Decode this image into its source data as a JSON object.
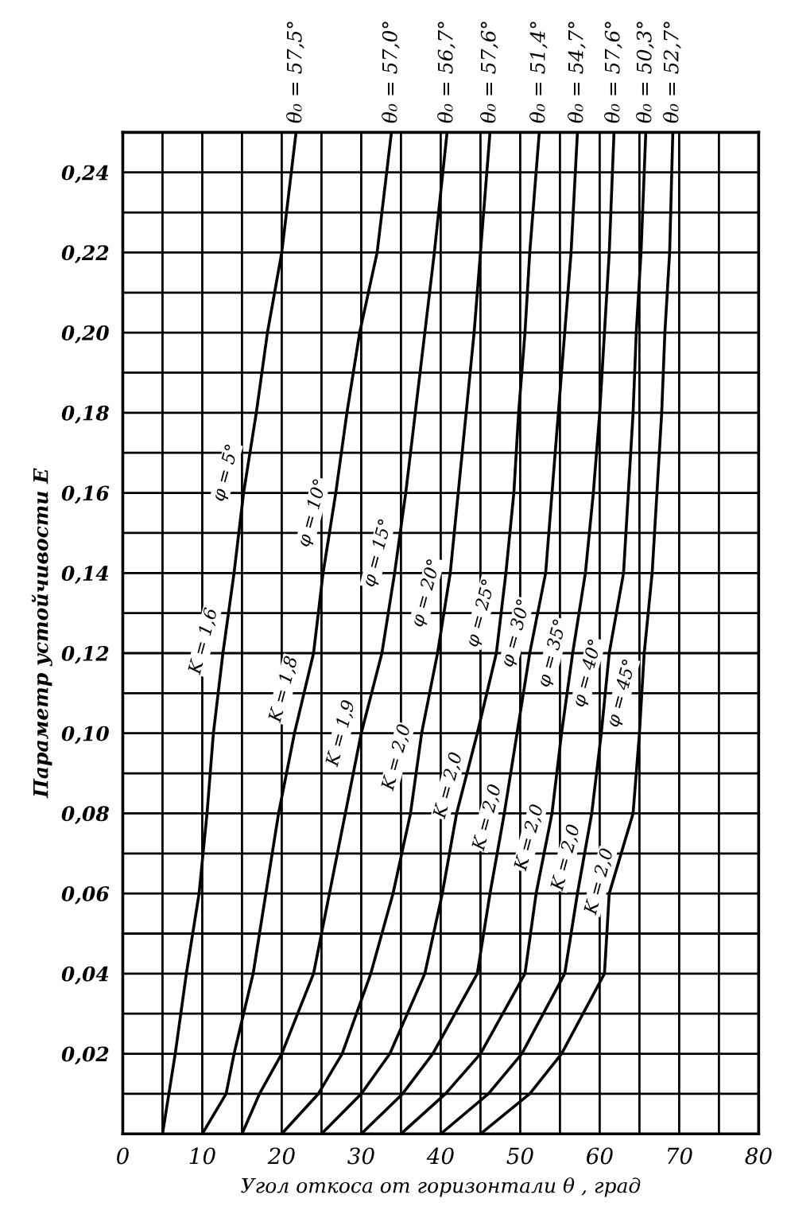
{
  "chart_data": {
    "type": "line",
    "xlabel": "Угол откоса от горизонтали θ , град",
    "ylabel": "Параметр устойчивости E",
    "xlim": [
      0,
      80
    ],
    "ylim": [
      0,
      0.25
    ],
    "xticks": [
      0,
      {
        "value": 5,
        "label": null
      },
      10,
      {
        "value": 15,
        "label": null
      },
      20,
      {
        "value": 25,
        "label": null
      },
      30,
      {
        "value": 35,
        "label": null
      },
      40,
      {
        "value": 45,
        "label": null
      },
      50,
      {
        "value": 55,
        "label": null
      },
      60,
      {
        "value": 65,
        "label": null
      },
      70,
      {
        "value": 75,
        "label": null
      },
      80
    ],
    "yticks": [
      {
        "value": 0.01,
        "label": null
      },
      {
        "value": 0.02,
        "label": "0,02"
      },
      {
        "value": 0.03,
        "label": null
      },
      {
        "value": 0.04,
        "label": "0,04"
      },
      {
        "value": 0.05,
        "label": null
      },
      {
        "value": 0.06,
        "label": "0,06"
      },
      {
        "value": 0.07,
        "label": null
      },
      {
        "value": 0.08,
        "label": "0,08"
      },
      {
        "value": 0.09,
        "label": null
      },
      {
        "value": 0.1,
        "label": "0,10"
      },
      {
        "value": 0.11,
        "label": null
      },
      {
        "value": 0.12,
        "label": "0,12"
      },
      {
        "value": 0.13,
        "label": null
      },
      {
        "value": 0.14,
        "label": "0,14"
      },
      {
        "value": 0.15,
        "label": null
      },
      {
        "value": 0.16,
        "label": "0,16"
      },
      {
        "value": 0.17,
        "label": null
      },
      {
        "value": 0.18,
        "label": "0,18"
      },
      {
        "value": 0.19,
        "label": null
      },
      {
        "value": 0.2,
        "label": "0,20"
      },
      {
        "value": 0.21,
        "label": null
      },
      {
        "value": 0.22,
        "label": "0,22"
      },
      {
        "value": 0.23,
        "label": null
      },
      {
        "value": 0.24,
        "label": "0,24"
      }
    ],
    "grid": true,
    "marker": "none",
    "line_style": "solid",
    "series": [
      {
        "color": "#000000",
        "x": [
          5,
          6.6,
          8,
          9.6,
          10.6,
          11.4,
          12.6,
          14,
          15.2,
          16.8,
          18.2,
          20,
          21.8
        ],
        "values": [
          0,
          0.02,
          0.04,
          0.06,
          0.08,
          0.1,
          0.12,
          0.14,
          0.16,
          0.18,
          0.2,
          0.22,
          0.25
        ]
      },
      {
        "color": "#000000",
        "x": [
          10,
          13,
          14,
          16.4,
          18,
          19.6,
          21.6,
          24,
          25.2,
          26.8,
          28.2,
          29.8,
          32,
          33.8
        ],
        "values": [
          0,
          0.01,
          0.02,
          0.04,
          0.06,
          0.08,
          0.1,
          0.12,
          0.14,
          0.16,
          0.18,
          0.2,
          0.22,
          0.25
        ]
      },
      {
        "color": "#000000",
        "x": [
          15,
          17.2,
          20,
          24,
          26,
          28,
          30,
          32.6,
          34.2,
          35.6,
          36.8,
          38,
          39.2,
          40.8
        ],
        "values": [
          0,
          0.01,
          0.02,
          0.04,
          0.06,
          0.08,
          0.1,
          0.12,
          0.14,
          0.16,
          0.18,
          0.2,
          0.22,
          0.25
        ]
      },
      {
        "color": "#000000",
        "x": [
          20,
          24.6,
          27.6,
          31.2,
          34,
          36.2,
          37.6,
          39.6,
          41.2,
          42.2,
          43.2,
          44.2,
          45,
          46.2
        ],
        "values": [
          0,
          0.01,
          0.02,
          0.04,
          0.06,
          0.08,
          0.1,
          0.12,
          0.14,
          0.16,
          0.18,
          0.2,
          0.22,
          0.25
        ]
      },
      {
        "color": "#000000",
        "x": [
          25,
          30,
          33.6,
          38,
          40.2,
          42,
          44.6,
          47,
          48.2,
          49.2,
          49.8,
          50.6,
          51.2,
          52.4
        ],
        "values": [
          0,
          0.01,
          0.02,
          0.04,
          0.06,
          0.08,
          0.1,
          0.12,
          0.14,
          0.16,
          0.18,
          0.2,
          0.22,
          0.25
        ]
      },
      {
        "color": "#000000",
        "x": [
          30,
          35.2,
          39,
          44.6,
          46.2,
          48,
          49.6,
          51.2,
          53.2,
          54,
          54.8,
          55.6,
          56.4,
          57.2
        ],
        "values": [
          0,
          0.01,
          0.02,
          0.04,
          0.06,
          0.08,
          0.1,
          0.12,
          0.14,
          0.16,
          0.18,
          0.2,
          0.22,
          0.25
        ]
      },
      {
        "color": "#000000",
        "x": [
          35,
          40.6,
          45,
          50.6,
          52,
          54,
          55.2,
          56.6,
          58.2,
          59.2,
          60,
          60.6,
          61.2,
          61.8
        ],
        "values": [
          0,
          0.01,
          0.02,
          0.04,
          0.06,
          0.08,
          0.1,
          0.12,
          0.14,
          0.16,
          0.18,
          0.2,
          0.22,
          0.25
        ]
      },
      {
        "color": "#000000",
        "x": [
          40,
          46,
          50.2,
          55.6,
          57.2,
          59,
          60.2,
          61.2,
          63,
          63.6,
          64.2,
          64.6,
          65.2,
          65.8
        ],
        "values": [
          0,
          0.01,
          0.02,
          0.04,
          0.06,
          0.08,
          0.1,
          0.12,
          0.14,
          0.16,
          0.18,
          0.2,
          0.22,
          0.25
        ]
      },
      {
        "color": "#000000",
        "x": [
          45,
          51.2,
          55.2,
          60.6,
          61.2,
          64.2,
          65,
          65.6,
          66.6,
          67.2,
          67.8,
          68.2,
          68.8,
          69.2
        ],
        "values": [
          0,
          0.01,
          0.02,
          0.04,
          0.06,
          0.08,
          0.1,
          0.12,
          0.14,
          0.16,
          0.18,
          0.2,
          0.22,
          0.25
        ]
      }
    ],
    "annotations": [
      {
        "text": "θ₀ = 57,5°",
        "x": 21.8,
        "y": 0.25
      },
      {
        "text": "θ₀ = 57,0°",
        "x": 33.8,
        "y": 0.25
      },
      {
        "text": "θ₀ = 56,7°",
        "x": 40.8,
        "y": 0.25
      },
      {
        "text": "θ₀ = 57,6°",
        "x": 46.2,
        "y": 0.25
      },
      {
        "text": "θ₀ = 51,4°",
        "x": 52.4,
        "y": 0.25
      },
      {
        "text": "θ₀ = 54,7°",
        "x": 57.2,
        "y": 0.25
      },
      {
        "text": "θ₀ = 57,6°",
        "x": 61.8,
        "y": 0.25
      },
      {
        "text": "θ₀ = 50,3°",
        "x": 65.8,
        "y": 0.25
      },
      {
        "text": "θ₀ = 52,7°",
        "x": 69.2,
        "y": 0.25
      },
      {
        "text": "φ = 5°",
        "x": 15.5,
        "y": 0.165
      },
      {
        "text": "φ = 10°",
        "x": 26.4,
        "y": 0.155
      },
      {
        "text": "φ = 15°",
        "x": 34.6,
        "y": 0.145
      },
      {
        "text": "φ = 20°",
        "x": 40.7,
        "y": 0.135
      },
      {
        "text": "φ = 25°",
        "x": 47.6,
        "y": 0.13
      },
      {
        "text": "φ = 30°",
        "x": 52,
        "y": 0.125
      },
      {
        "text": "φ = 35°",
        "x": 56.6,
        "y": 0.12
      },
      {
        "text": "φ = 40°",
        "x": 61,
        "y": 0.115
      },
      {
        "text": "φ = 45°",
        "x": 65.3,
        "y": 0.11
      },
      {
        "text": "K = 1,6",
        "x": 12.7,
        "y": 0.123
      },
      {
        "text": "K = 1,8",
        "x": 22.8,
        "y": 0.111
      },
      {
        "text": "K = 1,9",
        "x": 30,
        "y": 0.1
      },
      {
        "text": "K = 2,0",
        "x": 37,
        "y": 0.094
      },
      {
        "text": "K = 2,0",
        "x": 43.5,
        "y": 0.087
      },
      {
        "text": "K = 2,0",
        "x": 48.4,
        "y": 0.079
      },
      {
        "text": "K = 2,0",
        "x": 53.7,
        "y": 0.074
      },
      {
        "text": "K = 2,0",
        "x": 58.3,
        "y": 0.069
      },
      {
        "text": "K = 2,0",
        "x": 62.5,
        "y": 0.063
      }
    ]
  }
}
